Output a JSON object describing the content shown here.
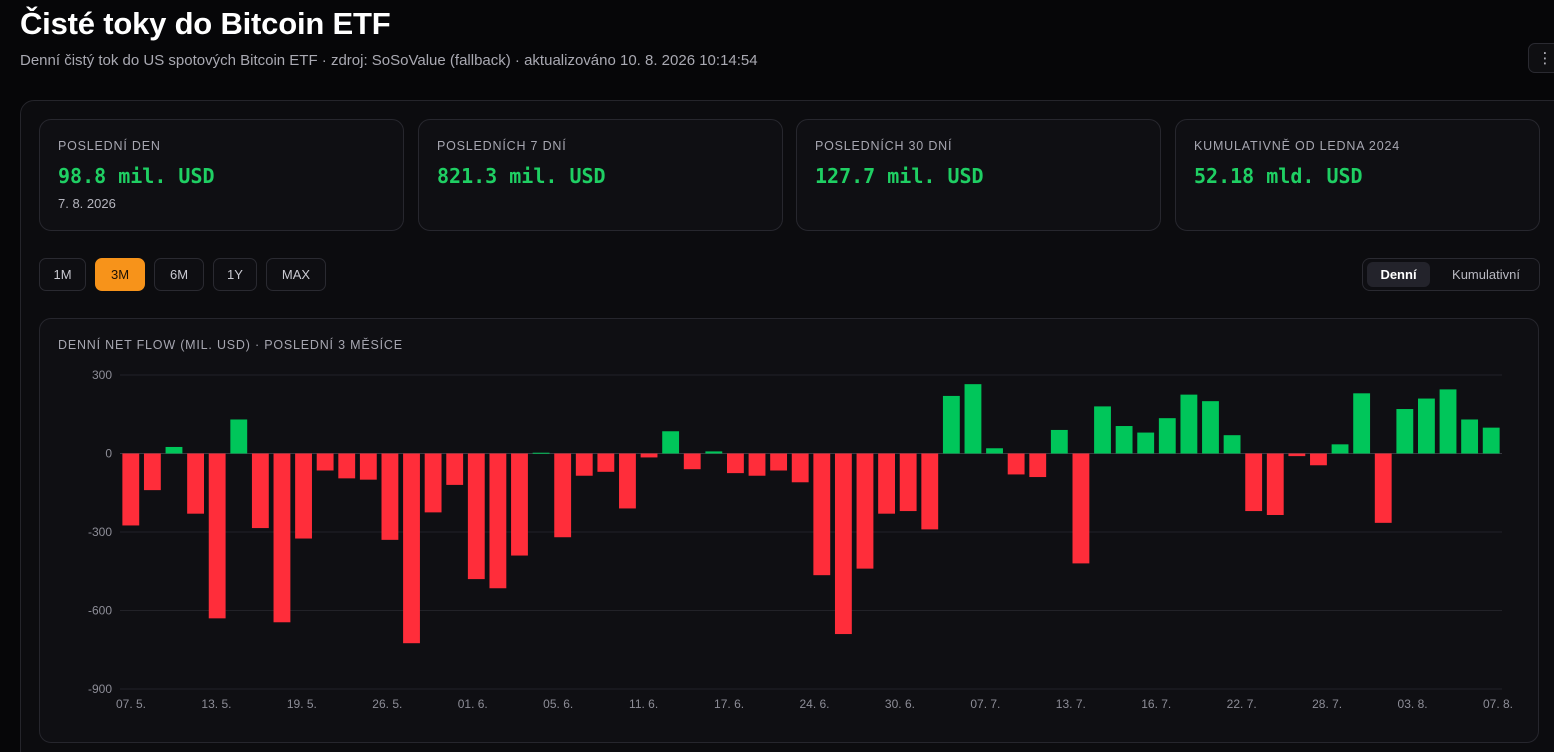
{
  "header": {
    "title": "Čisté toky do Bitcoin ETF",
    "subtitle": "Denní čistý tok do US spotových Bitcoin ETF · zdroj: SoSoValue (fallback) · aktualizováno 10. 8. 2026 10:14:54",
    "menu_icon": "vertical-dots-icon"
  },
  "stats": [
    {
      "label": "Poslední den",
      "value": "98.8 mil. USD",
      "date": "7. 8. 2026"
    },
    {
      "label": "Posledních 7 dní",
      "value": "821.3 mil. USD"
    },
    {
      "label": "Posledních 30 dní",
      "value": "127.7 mil. USD"
    },
    {
      "label": "Kumulativně od ledna 2024",
      "value": "52.18 mld. USD"
    }
  ],
  "ranges": [
    "1M",
    "3M",
    "6M",
    "1Y",
    "MAX"
  ],
  "active_range": "3M",
  "view_toggle": {
    "options": [
      "Denní",
      "Kumulativní"
    ],
    "active": "Denní"
  },
  "colors": {
    "positive": "#00c65a",
    "negative": "#ff2d3a",
    "accent": "#f7931a"
  },
  "chart_data": {
    "type": "bar",
    "title": "DENNÍ NET FLOW (MIL. USD) · POSLEDNÍ 3 MĚSÍCE",
    "xlabel": "",
    "ylabel": "",
    "ylim": [
      -900,
      300
    ],
    "yticks": [
      300,
      0,
      -300,
      -600,
      -900
    ],
    "grid": true,
    "tick_labels": [
      "07. 5.",
      "13. 5.",
      "19. 5.",
      "26. 5.",
      "01. 6.",
      "05. 6.",
      "11. 6.",
      "17. 6.",
      "24. 6.",
      "30. 6.",
      "07. 7.",
      "13. 7.",
      "16. 7.",
      "22. 7.",
      "28. 7.",
      "03. 8.",
      "07. 8."
    ],
    "values": [
      -275,
      -140,
      25,
      -230,
      -630,
      130,
      -285,
      -645,
      -325,
      -65,
      -95,
      -100,
      -330,
      -725,
      -225,
      -120,
      -480,
      -515,
      -390,
      3,
      -320,
      -85,
      -70,
      -210,
      -15,
      85,
      -60,
      8,
      -75,
      -85,
      -65,
      -110,
      -465,
      -690,
      -440,
      -230,
      -220,
      -290,
      220,
      265,
      20,
      -80,
      -90,
      90,
      -420,
      180,
      105,
      80,
      135,
      225,
      200,
      70,
      -220,
      -235,
      -10,
      -45,
      35,
      230,
      -265,
      170,
      210,
      245,
      130,
      98.8
    ]
  }
}
